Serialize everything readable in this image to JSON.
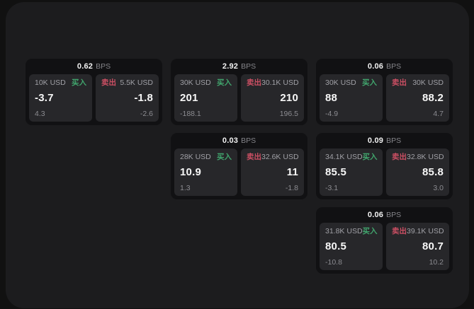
{
  "labels": {
    "bps_suffix": "BPS",
    "buy": "买入",
    "sell": "卖出"
  },
  "colors": {
    "panel_bg": "#1c1c1e",
    "card_bg": "#111113",
    "subcard_bg": "#27272a",
    "buy_green": "#41a56d",
    "sell_red": "#cb4f63"
  },
  "cards": [
    {
      "bps": "0.62",
      "buy": {
        "size": "10K USD",
        "value": "-3.7",
        "delta": "4.3"
      },
      "sell": {
        "size": "5.5K USD",
        "value": "-1.8",
        "delta": "-2.6"
      }
    },
    {
      "bps": "2.92",
      "buy": {
        "size": "30K USD",
        "value": "201",
        "delta": "-188.1"
      },
      "sell": {
        "size": "30.1K USD",
        "value": "210",
        "delta": "196.5"
      }
    },
    {
      "bps": "0.06",
      "buy": {
        "size": "30K USD",
        "value": "88",
        "delta": "-4.9"
      },
      "sell": {
        "size": "30K USD",
        "value": "88.2",
        "delta": "4.7"
      }
    },
    {
      "bps": "0.03",
      "buy": {
        "size": "28K USD",
        "value": "10.9",
        "delta": "1.3"
      },
      "sell": {
        "size": "32.6K USD",
        "value": "11",
        "delta": "-1.8"
      }
    },
    {
      "bps": "0.09",
      "buy": {
        "size": "34.1K USD",
        "value": "85.5",
        "delta": "-3.1"
      },
      "sell": {
        "size": "32.8K USD",
        "value": "85.8",
        "delta": "3.0"
      }
    },
    {
      "bps": "0.06",
      "buy": {
        "size": "31.8K USD",
        "value": "80.5",
        "delta": "-10.8"
      },
      "sell": {
        "size": "39.1K USD",
        "value": "80.7",
        "delta": "10.2"
      }
    }
  ]
}
